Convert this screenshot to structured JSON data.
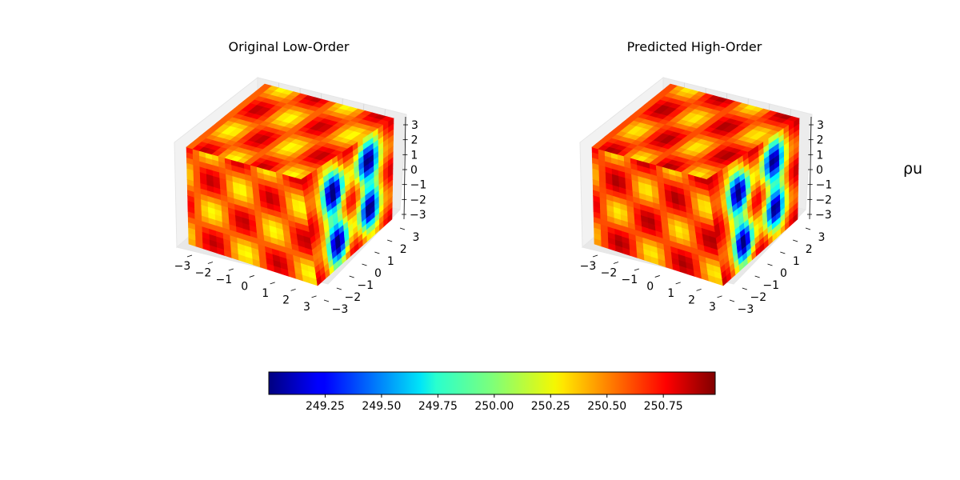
{
  "chart_data": [
    {
      "type": "scatter3d",
      "title": "Original Low-Order",
      "x_ticks": [
        "−3",
        "−2",
        "−1",
        "0",
        "1",
        "2",
        "3"
      ],
      "y_ticks": [
        "−3",
        "−2",
        "−1",
        "0",
        "1",
        "2",
        "3"
      ],
      "z_ticks": [
        "3",
        "2",
        "1",
        "0",
        "−1",
        "−2",
        "−3"
      ],
      "xlim": [
        -3.14,
        3.14
      ],
      "ylim": [
        -3.14,
        3.14
      ],
      "zlim": [
        -3.14,
        3.14
      ],
      "colormap": "jet"
    },
    {
      "type": "scatter3d",
      "title": "Predicted High-Order",
      "x_ticks": [
        "−3",
        "−2",
        "−1",
        "0",
        "1",
        "2",
        "3"
      ],
      "y_ticks": [
        "−3",
        "−2",
        "−1",
        "0",
        "1",
        "2",
        "3"
      ],
      "z_ticks": [
        "3",
        "2",
        "1",
        "0",
        "−1",
        "−2",
        "−3"
      ],
      "xlim": [
        -3.14,
        3.14
      ],
      "ylim": [
        -3.14,
        3.14
      ],
      "zlim": [
        -3.14,
        3.14
      ],
      "colormap": "jet"
    }
  ],
  "colorbar": {
    "ticks": [
      "249.25",
      "249.50",
      "249.75",
      "250.00",
      "250.25",
      "250.50",
      "250.75"
    ],
    "tick_values": [
      249.25,
      249.5,
      249.75,
      250.0,
      250.25,
      250.5,
      250.75
    ],
    "range": [
      249.0,
      250.98
    ],
    "colormap": "jet",
    "orientation": "horizontal"
  },
  "variable_label": "ρu"
}
